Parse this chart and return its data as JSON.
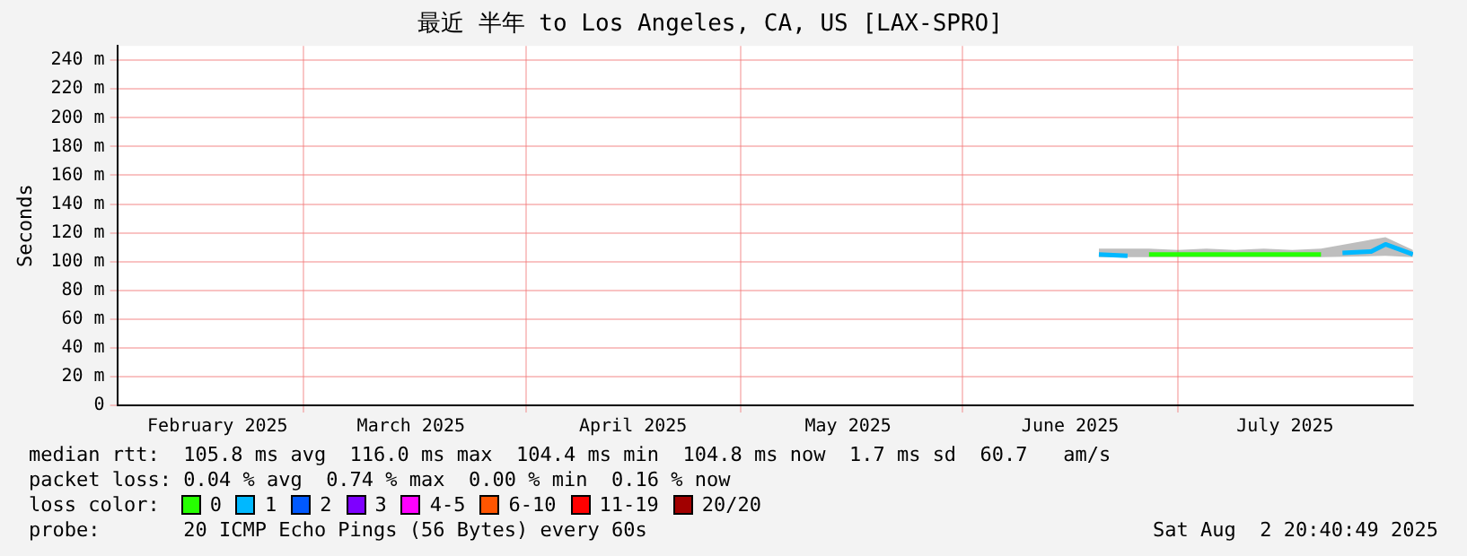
{
  "chart_data": {
    "type": "line",
    "title": "最近 半年 to Los Angeles, CA, US [LAX-SPRO]",
    "ylabel": "Seconds",
    "legend_title": "loss color:",
    "series": [
      {
        "name": "0",
        "color": "#26ff00",
        "x": [
          "2025-06-20",
          "2025-06-27",
          "2025-07-01",
          "2025-07-05",
          "2025-07-09",
          "2025-07-13",
          "2025-07-17",
          "2025-07-21",
          "2025-07-30",
          "2025-08-02T20:00"
        ],
        "values": [
          null,
          105,
          105,
          105,
          105,
          105,
          105,
          105,
          null,
          null
        ],
        "lower": [
          103,
          103,
          103,
          103,
          103,
          103,
          103,
          103,
          104,
          103
        ],
        "upper": [
          109,
          109,
          108,
          109,
          108,
          109,
          108,
          109,
          117,
          108
        ]
      },
      {
        "name": "1",
        "color": "#00b8ff",
        "x": [
          "2025-06-20",
          "2025-06-24",
          "2025-07-10",
          "2025-07-24",
          "2025-07-28",
          "2025-07-30",
          "2025-08-02T20:00"
        ],
        "values": [
          105,
          104,
          null,
          106,
          107,
          112,
          105
        ]
      },
      {
        "name": "2",
        "color": "#0059ff",
        "values": [
          null,
          null,
          null,
          null,
          null,
          null,
          null,
          null,
          null,
          null,
          null,
          null,
          null,
          null,
          null,
          null,
          null,
          null,
          null
        ]
      },
      {
        "name": "3",
        "color": "#7e00ff",
        "values": [
          null,
          null,
          null,
          null,
          null,
          null,
          null,
          null,
          null,
          null,
          null,
          null,
          null,
          null,
          null,
          null,
          null,
          null,
          null
        ]
      },
      {
        "name": "4-5",
        "color": "#ff00ff",
        "values": [
          null,
          null,
          null,
          null,
          null,
          null,
          null,
          null,
          null,
          null,
          null,
          null,
          null,
          null,
          null,
          null,
          null,
          null,
          null
        ]
      },
      {
        "name": "6-10",
        "color": "#ff5500",
        "values": [
          null,
          null,
          null,
          null,
          null,
          null,
          null,
          null,
          null,
          null,
          null,
          null,
          null,
          null,
          null,
          null,
          null,
          null,
          null
        ]
      },
      {
        "name": "11-19",
        "color": "#ff0000",
        "values": [
          null,
          null,
          null,
          null,
          null,
          null,
          null,
          null,
          null,
          null,
          null,
          null,
          null,
          null,
          null,
          null,
          null,
          null,
          null
        ]
      },
      {
        "name": "20/20",
        "color": "#a10000",
        "values": [
          null,
          null,
          null,
          null,
          null,
          null,
          null,
          null,
          null,
          null,
          null,
          null,
          null,
          null,
          null,
          null,
          null,
          null,
          null
        ]
      }
    ],
    "xlim": [
      "2025-02-03",
      "2025-08-02T20:40"
    ],
    "xticks": [
      {
        "value": "2025-02-17",
        "label": "February 2025"
      },
      {
        "value": "2025-03-01",
        "label": null
      },
      {
        "value": "2025-03-16",
        "label": "March 2025"
      },
      {
        "value": "2025-04-01",
        "label": null
      },
      {
        "value": "2025-04-16",
        "label": "April 2025"
      },
      {
        "value": "2025-05-01",
        "label": null
      },
      {
        "value": "2025-05-16",
        "label": "May 2025"
      },
      {
        "value": "2025-06-01",
        "label": null
      },
      {
        "value": "2025-06-16",
        "label": "June 2025"
      },
      {
        "value": "2025-07-01",
        "label": null
      },
      {
        "value": "2025-07-16",
        "label": "July 2025"
      }
    ],
    "ylim": [
      0,
      250
    ],
    "yticks": [
      0,
      {
        "value": 20,
        "label": "20 m"
      },
      {
        "value": 40,
        "label": "40 m"
      },
      {
        "value": 60,
        "label": "60 m"
      },
      {
        "value": 80,
        "label": "80 m"
      },
      {
        "value": 100,
        "label": "100 m"
      },
      {
        "value": 120,
        "label": "120 m"
      },
      {
        "value": 140,
        "label": "140 m"
      },
      {
        "value": 160,
        "label": "160 m"
      },
      {
        "value": 180,
        "label": "180 m"
      },
      {
        "value": 200,
        "label": "200 m"
      },
      {
        "value": 220,
        "label": "220 m"
      },
      {
        "value": 240,
        "label": "240 m"
      }
    ],
    "grid": true,
    "legend": "bottom",
    "marker": "none",
    "line_style": "solid",
    "annotations": [
      "median rtt:  105.8 ms avg  116.0 ms max  104.4 ms min  104.8 ms now  1.7 ms sd  60.7   am/s",
      "packet loss: 0.04 % avg  0.74 % max  0.00 % min  0.16 % now",
      "probe:       20 ICMP Echo Pings (56 Bytes) every 60s",
      "Sat Aug  2 20:40:49 2025"
    ]
  }
}
